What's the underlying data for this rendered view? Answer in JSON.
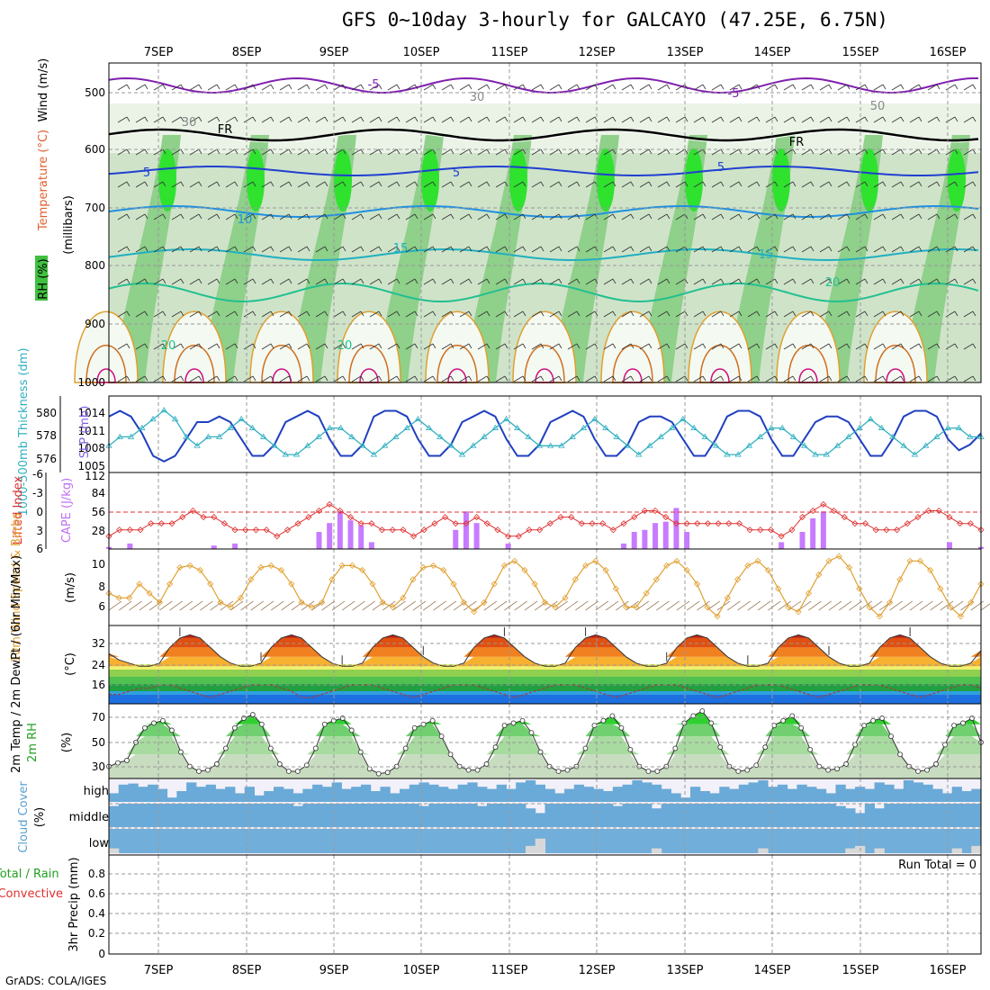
{
  "title": "GFS 0~10day 3-hourly for GALCAYO (47.25E, 6.75N)",
  "credit": "GrADS: COLA/IGES",
  "run_total": "Run Total = 0",
  "colors": {
    "cape": "#c77bff",
    "lifted": "#e03030",
    "wind10": "#e0a030",
    "slp": "#2040c0",
    "thick": "#30b0c0",
    "rh_fill": "#40c040",
    "cloud": "#6aaad8",
    "temp_hot": "#e05010",
    "dew": "#30a030"
  },
  "chart_data": [
    {
      "type": "heatmap",
      "name_label": "RH (%) / Temperature (°C) / Wind (m/s)",
      "axis_labels": {
        "left_stack": [
          "RH (%)",
          "Temperature (°C)",
          "Wind (m/s)"
        ],
        "y": "(millibars)"
      },
      "y_ticks": [
        "500",
        "600",
        "700",
        "800",
        "900",
        "1000"
      ],
      "contour_labels": [
        "-5",
        "-5",
        "FR",
        "FR",
        "5",
        "5",
        "5",
        "10",
        "15",
        "15",
        "20",
        "20",
        "20",
        "30",
        "30",
        "50"
      ],
      "ylim": [
        1000,
        450
      ],
      "x_days": [
        "7SEP",
        "8SEP",
        "9SEP",
        "10SEP",
        "11SEP",
        "12SEP",
        "13SEP",
        "14SEP",
        "15SEP",
        "16SEP"
      ]
    },
    {
      "type": "line",
      "axis_labels": {
        "left": "1000-500mb Thickness (dm)",
        "right": "SLP (mb)"
      },
      "left_ticks": [
        "580",
        "578",
        "576"
      ],
      "right_ticks": [
        "1014",
        "1011",
        "1008",
        "1005"
      ],
      "series": [
        {
          "name": "SLP",
          "unit": "mb",
          "values": [
            1013,
            1014,
            1013,
            1010,
            1006,
            1005,
            1006,
            1009,
            1012,
            1012,
            1013,
            1012,
            1009,
            1006,
            1006,
            1008,
            1012,
            1013,
            1014,
            1013,
            1009,
            1006,
            1006,
            1008,
            1013,
            1014,
            1014,
            1013,
            1009,
            1006,
            1006,
            1008,
            1012,
            1013,
            1014,
            1013,
            1009,
            1006,
            1006,
            1008,
            1012,
            1013,
            1014,
            1013,
            1009,
            1006,
            1006,
            1008,
            1012,
            1013,
            1013,
            1012,
            1009,
            1006,
            1006,
            1009,
            1013,
            1014,
            1014,
            1013,
            1009,
            1006,
            1006,
            1009,
            1012,
            1013,
            1013,
            1012,
            1009,
            1006,
            1006,
            1009,
            1013,
            1014,
            1014,
            1013,
            1009,
            1007,
            1008,
            1010
          ]
        },
        {
          "name": "Thickness",
          "unit": "dm",
          "values": [
            577,
            578,
            578,
            579,
            580,
            581,
            580,
            578,
            577,
            578,
            578,
            579,
            580,
            579,
            578,
            577,
            576,
            576,
            577,
            578,
            579,
            579,
            578,
            577,
            576,
            577,
            578,
            579,
            580,
            579,
            578,
            577,
            576,
            577,
            578,
            579,
            580,
            579,
            578,
            577,
            577,
            577,
            578,
            579,
            580,
            579,
            578,
            577,
            576,
            577,
            578,
            579,
            580,
            579,
            578,
            577,
            576,
            576,
            577,
            578,
            579,
            579,
            578,
            577,
            576,
            576,
            577,
            578,
            579,
            580,
            579,
            578,
            577,
            576,
            577,
            578,
            579,
            579,
            578,
            578
          ]
        }
      ]
    },
    {
      "type": "bar",
      "axis_labels": {
        "left": "Lifted Index",
        "right": "CAPE (J/kg)"
      },
      "left_ticks": [
        "-6",
        "-3",
        "0",
        "3",
        "6"
      ],
      "right_ticks": [
        "112",
        "84",
        "56",
        "28"
      ],
      "series": [
        {
          "name": "CAPE",
          "unit": "J/kg",
          "values": [
            3,
            0,
            8,
            0,
            0,
            0,
            0,
            0,
            0,
            0,
            5,
            0,
            8,
            0,
            0,
            0,
            0,
            0,
            0,
            0,
            25,
            38,
            55,
            42,
            35,
            10,
            0,
            0,
            0,
            0,
            0,
            0,
            0,
            28,
            55,
            38,
            0,
            0,
            8,
            0,
            0,
            0,
            0,
            0,
            0,
            0,
            0,
            0,
            0,
            8,
            25,
            28,
            38,
            40,
            60,
            25,
            0,
            0,
            0,
            0,
            0,
            0,
            0,
            0,
            10,
            0,
            25,
            45,
            55,
            0,
            0,
            0,
            0,
            0,
            0,
            0,
            0,
            0,
            0,
            0,
            10,
            0,
            0,
            3
          ]
        },
        {
          "name": "Lifted Index",
          "unit": "",
          "values": [
            4,
            3,
            3,
            3,
            2,
            2,
            2,
            1,
            0,
            1,
            1,
            2,
            3,
            3,
            3,
            3,
            4,
            3,
            2,
            1,
            0,
            -1,
            0,
            1,
            2,
            2,
            3,
            3,
            3,
            4,
            3,
            2,
            1,
            2,
            2,
            1,
            2,
            3,
            4,
            4,
            3,
            3,
            2,
            1,
            1,
            2,
            2,
            2,
            3,
            2,
            1,
            0,
            0,
            1,
            2,
            2,
            2,
            2,
            2,
            2,
            2,
            3,
            3,
            3,
            4,
            3,
            1,
            0,
            -1,
            0,
            1,
            2,
            2,
            3,
            3,
            3,
            2,
            1,
            0,
            0,
            1,
            2,
            2,
            3
          ]
        }
      ]
    },
    {
      "type": "line",
      "axis_labels": {
        "left": "10m Wind Speed & Barbs",
        "unit": "(m/s)"
      },
      "y_ticks": [
        "10",
        "8",
        "6"
      ],
      "series": [
        {
          "name": "10m Wind Speed",
          "unit": "m/s",
          "values": [
            7,
            6.5,
            6.5,
            8,
            7,
            6,
            8,
            9.8,
            10,
            9.5,
            8,
            6,
            5.5,
            6.5,
            8.5,
            9.8,
            10,
            9.5,
            8,
            6,
            5.5,
            6,
            8.5,
            10,
            10,
            9.5,
            8,
            6,
            5.5,
            6.5,
            8.5,
            9.8,
            10,
            9.5,
            8,
            6,
            5,
            6,
            8,
            10,
            10.5,
            9.5,
            8,
            6,
            5.5,
            6.5,
            8.5,
            10,
            10.5,
            9.5,
            7.5,
            5.5,
            5.5,
            7,
            8.5,
            10,
            10.5,
            9.5,
            8,
            5.5,
            4.5,
            6.5,
            8.5,
            10,
            10.5,
            9.5,
            7.5,
            5.5,
            5,
            7,
            9,
            10.5,
            11,
            9.8,
            7.5,
            5.5,
            4.5,
            6,
            8.5,
            10.5,
            10.5,
            9.5,
            7.5,
            5.5,
            4.5,
            6,
            8
          ]
        }
      ]
    },
    {
      "type": "area",
      "axis_labels": {
        "left": "2m Temp / 2m DewPt / (6hr Min/Max)",
        "unit": "(°C)"
      },
      "y_ticks": [
        "32",
        "24",
        "16"
      ],
      "series": [
        {
          "name": "2m Temp",
          "unit": "°C",
          "values": [
            28,
            26,
            25,
            24,
            24,
            25,
            30,
            33,
            34,
            33,
            30,
            27,
            25,
            24,
            24,
            25,
            30,
            33,
            34,
            33,
            30,
            27,
            25,
            24,
            24,
            25,
            30,
            33,
            34,
            33,
            30,
            27,
            25,
            24,
            24,
            25,
            30,
            33,
            34,
            33,
            30,
            27,
            25,
            24,
            24,
            25,
            30,
            33,
            34,
            33,
            30,
            27,
            25,
            24,
            24,
            25,
            30,
            33,
            34,
            33,
            30,
            27,
            25,
            24,
            24,
            25,
            30,
            33,
            34,
            33,
            30,
            27,
            25,
            24,
            24,
            25,
            30,
            33,
            34,
            33,
            30,
            27,
            25,
            24,
            24,
            25,
            29
          ]
        },
        {
          "name": "2m DewPt",
          "unit": "°C",
          "values": [
            15,
            15,
            16,
            17,
            17,
            18,
            18,
            17,
            16,
            15,
            14,
            15,
            16,
            17,
            18,
            18,
            18,
            17,
            16,
            14,
            14,
            15,
            16,
            17,
            18,
            18,
            18,
            17,
            16,
            15,
            14,
            15,
            16,
            17,
            18,
            18,
            18,
            17,
            16,
            15,
            14,
            15,
            16,
            17,
            18,
            18,
            18,
            17,
            16,
            15,
            14,
            15,
            16,
            17,
            18,
            18,
            18,
            17,
            16,
            15,
            14,
            15,
            16,
            17,
            18,
            18,
            18,
            17,
            16,
            15,
            14,
            15,
            16,
            17,
            18,
            18,
            18,
            17,
            16,
            15,
            14,
            15,
            16,
            17,
            18,
            18,
            17
          ]
        }
      ]
    },
    {
      "type": "area",
      "axis_labels": {
        "left": "2m RH",
        "unit": "(%)"
      },
      "y_ticks": [
        "70",
        "50",
        "30"
      ],
      "series": [
        {
          "name": "2m RH",
          "unit": "%",
          "values": [
            30,
            33,
            35,
            50,
            62,
            66,
            68,
            60,
            42,
            30,
            26,
            27,
            32,
            45,
            62,
            70,
            73,
            65,
            45,
            32,
            26,
            26,
            31,
            45,
            65,
            68,
            70,
            60,
            42,
            28,
            24,
            25,
            30,
            45,
            62,
            65,
            68,
            55,
            40,
            30,
            27,
            27,
            32,
            46,
            64,
            66,
            68,
            58,
            42,
            30,
            26,
            27,
            30,
            45,
            64,
            68,
            72,
            62,
            44,
            30,
            26,
            26,
            30,
            45,
            66,
            72,
            76,
            66,
            46,
            30,
            26,
            27,
            31,
            46,
            64,
            68,
            72,
            62,
            44,
            30,
            27,
            28,
            32,
            48,
            64,
            68,
            70,
            55,
            40,
            30,
            26,
            27,
            32,
            48,
            64,
            66,
            70,
            50
          ]
        }
      ]
    },
    {
      "type": "bar",
      "axis_labels": {
        "left": "Cloud Cover",
        "unit": "(%)"
      },
      "levels": [
        "high",
        "middle",
        "low"
      ],
      "series": [
        {
          "name": "high",
          "unit": "%",
          "values": [
            40,
            80,
            85,
            70,
            80,
            60,
            20,
            50,
            90,
            70,
            80,
            60,
            70,
            40,
            70,
            30,
            50,
            70,
            60,
            40,
            60,
            80,
            70,
            90,
            60,
            70,
            80,
            50,
            70,
            40,
            60,
            80,
            90,
            80,
            70,
            60,
            80,
            90,
            70,
            60,
            80,
            60,
            90,
            100,
            80,
            60,
            40,
            60,
            80,
            70,
            60,
            50,
            70,
            80,
            100,
            90,
            80,
            60,
            40,
            20,
            70,
            50,
            40,
            70,
            60,
            80,
            90,
            100,
            70,
            80,
            60,
            80,
            70,
            60,
            40,
            80,
            60,
            70,
            60,
            90,
            80,
            60,
            100,
            90,
            80,
            60,
            40,
            70,
            50,
            60
          ]
        },
        {
          "name": "middle",
          "unit": "%",
          "values": [
            90,
            100,
            100,
            100,
            100,
            100,
            100,
            100,
            100,
            100,
            100,
            100,
            100,
            100,
            100,
            100,
            100,
            100,
            100,
            90,
            100,
            100,
            100,
            100,
            100,
            100,
            100,
            100,
            100,
            100,
            100,
            100,
            90,
            100,
            100,
            100,
            100,
            100,
            90,
            100,
            100,
            100,
            100,
            80,
            60,
            100,
            100,
            100,
            100,
            100,
            100,
            100,
            90,
            100,
            100,
            100,
            80,
            100,
            100,
            100,
            100,
            100,
            100,
            100,
            100,
            100,
            100,
            100,
            100,
            100,
            100,
            100,
            100,
            100,
            100,
            90,
            80,
            60,
            100,
            80,
            100,
            100,
            100,
            100,
            100,
            100,
            100,
            100,
            100,
            100
          ]
        },
        {
          "name": "low",
          "unit": "%",
          "values": [
            20,
            0,
            0,
            0,
            0,
            0,
            0,
            0,
            0,
            0,
            0,
            0,
            0,
            0,
            0,
            0,
            0,
            0,
            0,
            0,
            0,
            0,
            0,
            0,
            0,
            0,
            0,
            0,
            0,
            0,
            0,
            0,
            0,
            0,
            0,
            0,
            0,
            0,
            0,
            0,
            0,
            0,
            0,
            30,
            60,
            0,
            0,
            0,
            0,
            0,
            0,
            0,
            0,
            0,
            0,
            0,
            20,
            0,
            0,
            0,
            0,
            0,
            0,
            0,
            0,
            0,
            0,
            20,
            0,
            0,
            0,
            0,
            0,
            0,
            0,
            0,
            20,
            30,
            0,
            20,
            0,
            0,
            0,
            0,
            0,
            0,
            0,
            20,
            0,
            30
          ]
        }
      ]
    },
    {
      "type": "bar",
      "axis_labels": {
        "left": "Total / Rain / Convective",
        "right": "3hr Precip (mm)"
      },
      "y_ticks": [
        "0.8",
        "0.6",
        "0.4",
        "0.2",
        "0"
      ],
      "ylim": [
        0,
        1
      ],
      "series": [
        {
          "name": "Total",
          "values": []
        },
        {
          "name": "Rain",
          "values": []
        },
        {
          "name": "Convective",
          "values": []
        }
      ]
    }
  ]
}
